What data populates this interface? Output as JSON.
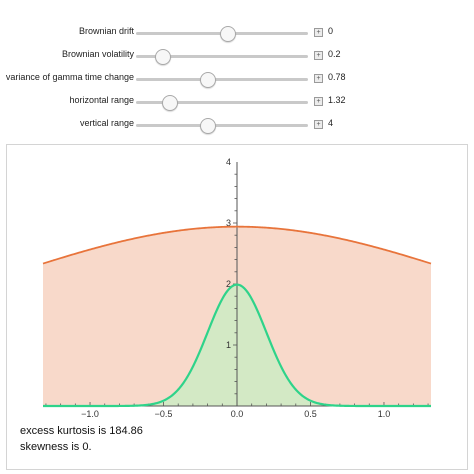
{
  "controls": [
    {
      "label": "Brownian drift",
      "value": "0",
      "position": 0.53
    },
    {
      "label": "Brownian volatility",
      "value": "0.2",
      "position": 0.15
    },
    {
      "label": "variance of gamma time change",
      "value": "0.78",
      "position": 0.41
    },
    {
      "label": "horizontal range",
      "value": "1.32",
      "position": 0.19
    },
    {
      "label": "vertical range",
      "value": "4",
      "position": 0.41
    }
  ],
  "stats": {
    "kurtosis": "excess kurtosis is 184.86",
    "skewness": "skewness is 0."
  },
  "colors": {
    "variance_gamma": "#e8743b",
    "normal": "#2fd38a",
    "variance_gamma_fill": "#f5ccb8",
    "normal_fill": "#c9ecc3"
  },
  "chart_data": {
    "type": "area",
    "xlim": [
      -1.32,
      1.32
    ],
    "ylim": [
      0,
      4
    ],
    "x_ticks": [
      "-1.0",
      "-0.5",
      "0.0",
      "0.5",
      "1.0"
    ],
    "y_ticks": [
      "1",
      "2",
      "3",
      "4"
    ],
    "series": [
      {
        "color": "#e8743b",
        "peak": 2.94
      },
      {
        "color": "#2fd38a",
        "sigma": 0.2,
        "peak": 1.99
      }
    ]
  }
}
